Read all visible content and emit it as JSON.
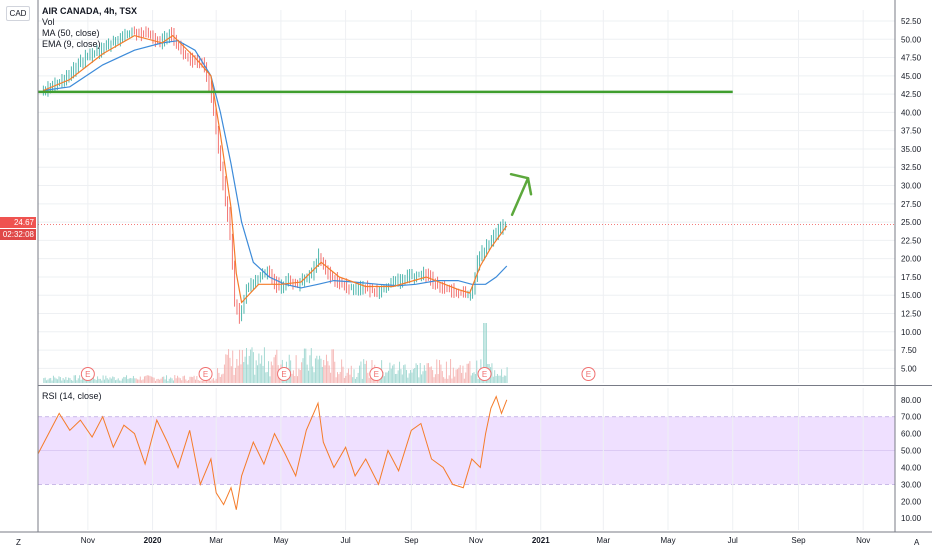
{
  "header": {
    "title": "AIR CANADA, 4h, TSX",
    "indicators": [
      "Vol",
      "MA (50, close)",
      "EMA (9, close)"
    ],
    "currency": "CAD"
  },
  "rsi_label": "RSI (14, close)",
  "last_price": "24.67",
  "countdown": "02:32:08",
  "corner_left": "Z",
  "corner_right": "A",
  "earnings_marker": "E",
  "colors": {
    "candle_up": "#26a69a",
    "candle_down": "#ef5350",
    "ma": "#3d8bd9",
    "ema": "#f57c2a",
    "support_line": "#3f9e2e",
    "arrow": "#5ca83c",
    "rsi_line": "#f57c2a",
    "rsi_band": "#efe0ff",
    "rsi_band_border": "#b9a3e0",
    "price_tag": "#ef5350",
    "earnings": "#f07070"
  },
  "chart_data": [
    {
      "type": "line",
      "name": "price",
      "y_ticks": [
        "5.00",
        "7.50",
        "10.00",
        "12.50",
        "15.00",
        "17.50",
        "20.00",
        "22.50",
        "25.00",
        "27.50",
        "30.00",
        "32.50",
        "35.00",
        "37.50",
        "40.00",
        "42.50",
        "45.00",
        "47.50",
        "50.00",
        "52.50"
      ],
      "ylim": [
        3,
        54
      ],
      "x_ticks": [
        "Nov",
        "2020",
        "Mar",
        "May",
        "Jul",
        "Sep",
        "Nov",
        "2021",
        "Mar",
        "May",
        "Jul",
        "Sep",
        "Nov"
      ],
      "x_tick_dates": [
        "2019-11",
        "2020-01",
        "2020-03",
        "2020-05",
        "2020-07",
        "2020-09",
        "2020-11",
        "2021-01",
        "2021-03",
        "2021-05",
        "2021-07",
        "2021-09",
        "2021-11"
      ],
      "xlim": [
        "2019-09-15",
        "2021-12-01"
      ],
      "close": {
        "x": [
          "2019-09-20",
          "2019-10-01",
          "2019-10-15",
          "2019-11-01",
          "2019-11-15",
          "2019-12-01",
          "2019-12-15",
          "2020-01-01",
          "2020-01-10",
          "2020-01-20",
          "2020-02-01",
          "2020-02-10",
          "2020-02-20",
          "2020-02-25",
          "2020-03-01",
          "2020-03-05",
          "2020-03-10",
          "2020-03-15",
          "2020-03-18",
          "2020-03-20",
          "2020-03-25",
          "2020-04-01",
          "2020-04-10",
          "2020-04-20",
          "2020-05-01",
          "2020-05-10",
          "2020-05-20",
          "2020-06-01",
          "2020-06-08",
          "2020-06-15",
          "2020-06-25",
          "2020-07-05",
          "2020-07-20",
          "2020-08-01",
          "2020-08-15",
          "2020-09-01",
          "2020-09-15",
          "2020-10-01",
          "2020-10-15",
          "2020-10-26",
          "2020-11-01",
          "2020-11-05",
          "2020-11-10",
          "2020-11-15",
          "2020-11-20",
          "2020-11-25",
          "2020-11-30"
        ],
        "y": [
          43,
          43.5,
          45,
          47.5,
          48.5,
          50,
          51,
          50.5,
          49.5,
          51,
          48,
          47,
          46.5,
          44,
          40,
          35,
          30,
          25,
          20,
          14,
          12,
          16,
          17,
          18.5,
          16,
          17,
          16.5,
          18,
          20.5,
          18,
          17,
          16,
          16,
          15.5,
          16.5,
          17.5,
          18,
          16,
          15.5,
          15,
          16,
          20,
          21,
          22,
          23,
          24,
          24.67
        ]
      },
      "ma_50": {
        "x": [
          "2019-09-20",
          "2019-10-15",
          "2019-11-15",
          "2019-12-15",
          "2020-01-10",
          "2020-01-25",
          "2020-02-10",
          "2020-02-25",
          "2020-03-05",
          "2020-03-15",
          "2020-03-25",
          "2020-04-05",
          "2020-04-20",
          "2020-05-05",
          "2020-05-20",
          "2020-06-05",
          "2020-06-20",
          "2020-07-10",
          "2020-08-01",
          "2020-08-20",
          "2020-09-05",
          "2020-09-25",
          "2020-10-15",
          "2020-10-28",
          "2020-11-10",
          "2020-11-20",
          "2020-11-30"
        ],
        "y": [
          43,
          43.5,
          46.5,
          48.5,
          49.5,
          49.8,
          48.5,
          45,
          40,
          33,
          25,
          19.5,
          17.5,
          16.5,
          16,
          16.5,
          17,
          16.8,
          16.5,
          16.3,
          16.5,
          17,
          17,
          16.5,
          16.5,
          17.5,
          19
        ]
      },
      "ema_9": {
        "x": [
          "2019-09-20",
          "2019-10-15",
          "2019-11-15",
          "2019-12-15",
          "2020-01-10",
          "2020-01-20",
          "2020-02-10",
          "2020-02-25",
          "2020-03-05",
          "2020-03-15",
          "2020-03-20",
          "2020-03-25",
          "2020-04-10",
          "2020-05-01",
          "2020-05-20",
          "2020-06-08",
          "2020-06-25",
          "2020-07-20",
          "2020-08-15",
          "2020-09-15",
          "2020-10-15",
          "2020-10-26",
          "2020-11-05",
          "2020-11-15",
          "2020-11-25",
          "2020-11-30"
        ],
        "y": [
          43,
          44.5,
          48,
          50.5,
          49.5,
          50.5,
          47.5,
          45,
          37,
          27,
          18,
          14,
          16.5,
          16.5,
          16.8,
          19.5,
          17.5,
          16.2,
          16.2,
          17.5,
          15.8,
          15.3,
          19,
          21.5,
          23.5,
          24.5
        ]
      },
      "support_level": 42.8,
      "support_range": [
        "2019-09-15",
        "2021-07-01"
      ],
      "earnings_dates": [
        "2019-11-01",
        "2020-02-20",
        "2020-05-04",
        "2020-07-30",
        "2020-11-09",
        "2021-02-15"
      ],
      "arrow": {
        "from": [
          "2020-12-05",
          26
        ],
        "to": [
          "2020-12-20",
          31
        ]
      }
    },
    {
      "type": "line",
      "name": "rsi",
      "y_ticks": [
        "10.00",
        "20.00",
        "30.00",
        "40.00",
        "50.00",
        "60.00",
        "70.00",
        "80.00"
      ],
      "ylim": [
        3,
        87
      ],
      "band": [
        30,
        70
      ],
      "x": [
        "2019-09-15",
        "2019-09-25",
        "2019-10-05",
        "2019-10-15",
        "2019-10-25",
        "2019-11-05",
        "2019-11-15",
        "2019-11-25",
        "2019-12-05",
        "2019-12-15",
        "2019-12-25",
        "2020-01-05",
        "2020-01-15",
        "2020-01-25",
        "2020-02-05",
        "2020-02-15",
        "2020-02-25",
        "2020-03-01",
        "2020-03-08",
        "2020-03-15",
        "2020-03-20",
        "2020-03-25",
        "2020-04-05",
        "2020-04-15",
        "2020-04-25",
        "2020-05-05",
        "2020-05-15",
        "2020-05-25",
        "2020-06-05",
        "2020-06-10",
        "2020-06-20",
        "2020-07-01",
        "2020-07-10",
        "2020-07-20",
        "2020-08-01",
        "2020-08-10",
        "2020-08-20",
        "2020-09-01",
        "2020-09-10",
        "2020-09-20",
        "2020-10-01",
        "2020-10-10",
        "2020-10-20",
        "2020-10-28",
        "2020-11-05",
        "2020-11-10",
        "2020-11-15",
        "2020-11-20",
        "2020-11-25",
        "2020-11-30"
      ],
      "y": [
        48,
        60,
        72,
        62,
        68,
        58,
        70,
        52,
        65,
        60,
        42,
        68,
        55,
        40,
        62,
        30,
        45,
        25,
        18,
        28,
        15,
        35,
        55,
        42,
        60,
        48,
        35,
        62,
        78,
        55,
        40,
        52,
        35,
        45,
        30,
        50,
        38,
        62,
        66,
        45,
        40,
        30,
        28,
        45,
        40,
        60,
        75,
        82,
        72,
        80
      ]
    }
  ]
}
